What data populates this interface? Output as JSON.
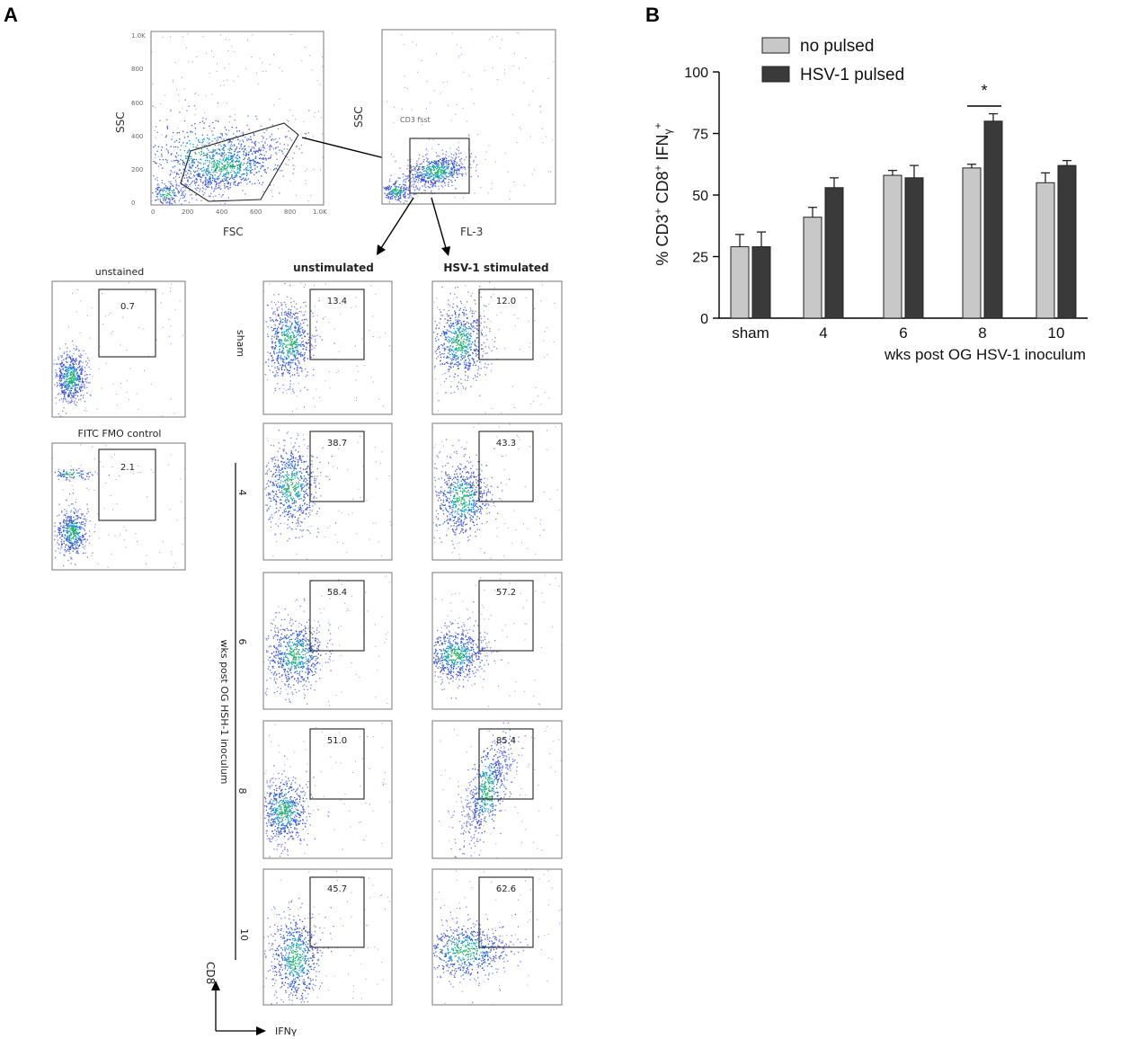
{
  "panel_a": {
    "letter": "A",
    "top_plots": {
      "fsc_ssc": {
        "xlabel": "FSC",
        "ylabel": "SSC",
        "yticks": [
          "0",
          "200",
          "400",
          "600",
          "800",
          "1.0K"
        ],
        "xticks": [
          "0",
          "200",
          "400",
          "600",
          "800",
          "1.0K"
        ]
      },
      "fl3_ssc": {
        "xlabel": "FL-3",
        "ylabel": "SSC",
        "gate_label": "CD3 fsst"
      }
    },
    "controls": {
      "unstained": {
        "title": "unstained",
        "value": "0.7"
      },
      "fmo": {
        "title": "FITC FMO control",
        "value": "2.1"
      }
    },
    "column_titles": {
      "unstimulated": "unstimulated",
      "stimulated": "HSV-1 stimulated"
    },
    "row_labels": [
      "sham",
      "4",
      "6",
      "8",
      "10"
    ],
    "vertical_axis_label": "wks post OG HSH-1 inoculum",
    "unstimulated_values": [
      "13.4",
      "38.7",
      "58.4",
      "51.0",
      "45.7"
    ],
    "stimulated_values": [
      "12.0",
      "43.3",
      "57.2",
      "85.4",
      "62.6"
    ],
    "corner_axes": {
      "y": "CD8",
      "x": "IFNγ"
    }
  },
  "panel_b": {
    "letter": "B",
    "legend": [
      "no pulsed",
      "HSV-1 pulsed"
    ],
    "significance": "*",
    "colors": {
      "no_pulsed": "#c8c8c8",
      "hsv_pulsed": "#3a3a3a"
    }
  },
  "chart_data": {
    "type": "bar",
    "title": "",
    "categories": [
      "sham",
      "4",
      "6",
      "8",
      "10"
    ],
    "series": [
      {
        "name": "no pulsed",
        "values": [
          29,
          41,
          58,
          61,
          55
        ],
        "errors": [
          5,
          4,
          2,
          1.5,
          4
        ]
      },
      {
        "name": "HSV-1 pulsed",
        "values": [
          29,
          53,
          57,
          80,
          62
        ],
        "errors": [
          6,
          4,
          5,
          3,
          2
        ]
      }
    ],
    "xlabel": "wks post OG HSV-1 inoculum",
    "ylabel": "% CD3+ CD8+ IFNγ+",
    "ylabel_parts": {
      "pct": "%",
      "cd3": "CD3",
      "cd8": "CD8",
      "ifn": "IFN",
      "gamma": "γ",
      "plus": "+"
    },
    "ylim": [
      0,
      100
    ],
    "yticks": [
      "0",
      "25",
      "50",
      "75",
      "100"
    ],
    "legend_position": "top"
  }
}
